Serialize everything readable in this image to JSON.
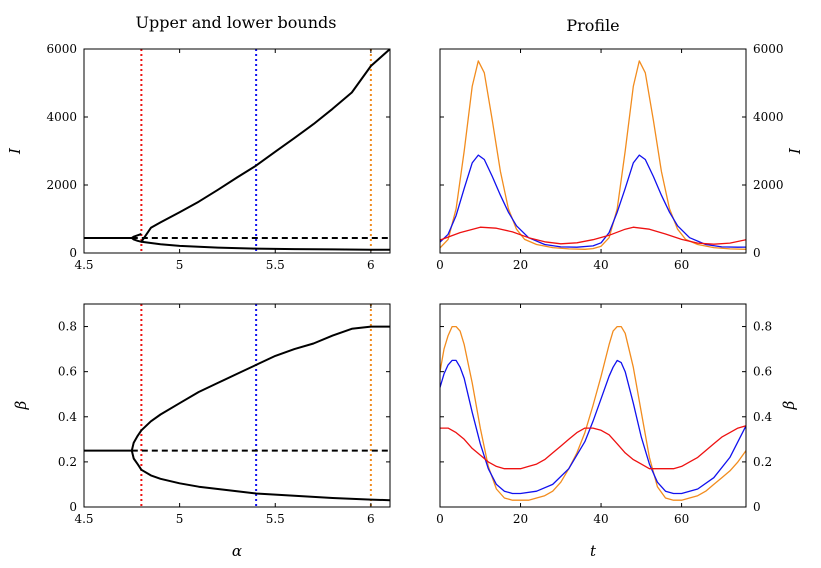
{
  "figure": {
    "left_title": "Upper and lower bounds",
    "right_title": "Profile"
  },
  "colors": {
    "red": "#ee1111",
    "blue": "#1111ee",
    "orange": "#f28c1e",
    "black": "#000000"
  },
  "chart_data": [
    {
      "id": "bounds-I",
      "type": "line",
      "title": "Upper and lower bounds",
      "xlabel": "",
      "ylabel": "I",
      "xlim": [
        4.5,
        6.1
      ],
      "ylim": [
        0,
        6000
      ],
      "xticks": [
        4.5,
        5,
        5.5,
        6
      ],
      "xtick_labels": [
        "4.5",
        "5",
        "5.5",
        "6"
      ],
      "yticks": [
        0,
        2000,
        4000,
        6000
      ],
      "ytick_labels": [
        "0",
        "2000",
        "4000",
        "6000"
      ],
      "yaxis_side": "left",
      "grid": false,
      "series": [
        {
          "style": "solid",
          "color": "#000000",
          "x": [
            4.5,
            4.6,
            4.7,
            4.75
          ],
          "y": [
            440,
            440,
            440,
            440
          ]
        },
        {
          "style": "solid",
          "color": "#000000",
          "x": [
            4.8,
            4.78,
            4.76,
            4.75,
            4.76,
            4.78,
            4.8,
            4.85,
            4.9,
            5.0,
            5.1,
            5.2,
            5.3,
            5.4,
            5.5,
            5.6,
            5.7,
            5.8,
            5.9,
            6.0,
            6.1
          ],
          "y": [
            560,
            520,
            480,
            440,
            400,
            360,
            330,
            740,
            900,
            1200,
            1510,
            1860,
            2220,
            2570,
            2980,
            3380,
            3790,
            4240,
            4720,
            5500,
            6000
          ]
        },
        {
          "style": "solid",
          "color": "#000000",
          "x": [
            4.8,
            4.9,
            5.0,
            5.2,
            5.4,
            5.6,
            5.8,
            6.0,
            6.1
          ],
          "y": [
            330,
            260,
            210,
            160,
            130,
            115,
            105,
            98,
            95
          ]
        },
        {
          "style": "dashed",
          "color": "#000000",
          "x": [
            4.75,
            6.1
          ],
          "y": [
            440,
            440
          ]
        }
      ],
      "vlines": [
        {
          "x": 4.8,
          "color": "#ee1111"
        },
        {
          "x": 5.4,
          "color": "#1111ee"
        },
        {
          "x": 6.0,
          "color": "#f28c1e"
        }
      ]
    },
    {
      "id": "profile-I",
      "type": "line",
      "title": "Profile",
      "xlabel": "",
      "ylabel": "I",
      "xlim": [
        0,
        76
      ],
      "ylim": [
        0,
        6000
      ],
      "xticks": [
        0,
        20,
        40,
        60
      ],
      "xtick_labels": [
        "0",
        "20",
        "40",
        "60"
      ],
      "yticks": [
        0,
        2000,
        4000,
        6000
      ],
      "ytick_labels": [
        "0",
        "2000",
        "4000",
        "6000"
      ],
      "yaxis_side": "right",
      "grid": false,
      "series": [
        {
          "color": "#f28c1e",
          "x": [
            0,
            2,
            4,
            6,
            8,
            9.5,
            11,
            13,
            15,
            17,
            19,
            21,
            24,
            28,
            32,
            36,
            38,
            40,
            42,
            44,
            46,
            48,
            49.5,
            51,
            53,
            55,
            57,
            59,
            61,
            64,
            68,
            72,
            76
          ],
          "y": [
            150,
            400,
            1300,
            3000,
            4900,
            5650,
            5300,
            3900,
            2400,
            1300,
            700,
            400,
            250,
            160,
            120,
            110,
            130,
            200,
            450,
            1300,
            3000,
            4900,
            5650,
            5300,
            3900,
            2400,
            1300,
            700,
            400,
            250,
            160,
            120,
            110
          ]
        },
        {
          "color": "#1111ee",
          "x": [
            0,
            2,
            4,
            6,
            8,
            9.5,
            11,
            13,
            15,
            17,
            19,
            22,
            26,
            30,
            34,
            38,
            40,
            42,
            44,
            46,
            48,
            49.5,
            51,
            53,
            55,
            57,
            59,
            62,
            66,
            70,
            74,
            76
          ],
          "y": [
            320,
            550,
            1100,
            1900,
            2650,
            2880,
            2750,
            2250,
            1700,
            1200,
            800,
            450,
            250,
            180,
            170,
            210,
            300,
            600,
            1200,
            1900,
            2650,
            2880,
            2750,
            2250,
            1700,
            1200,
            800,
            450,
            250,
            180,
            170,
            175
          ]
        },
        {
          "color": "#ee1111",
          "x": [
            0,
            5,
            10,
            14,
            18,
            22,
            26,
            30,
            34,
            38,
            42,
            46,
            48,
            52,
            56,
            60,
            64,
            68,
            72,
            76
          ],
          "y": [
            380,
            600,
            760,
            730,
            620,
            450,
            330,
            270,
            300,
            390,
            520,
            700,
            760,
            700,
            560,
            400,
            290,
            260,
            290,
            390
          ]
        }
      ],
      "vlines": []
    },
    {
      "id": "bounds-beta",
      "type": "line",
      "title": "",
      "xlabel": "α",
      "ylabel": "β",
      "xlim": [
        4.5,
        6.1
      ],
      "ylim": [
        0,
        0.9
      ],
      "xticks": [
        4.5,
        5,
        5.5,
        6
      ],
      "xtick_labels": [
        "4.5",
        "5",
        "5.5",
        "6"
      ],
      "yticks": [
        0,
        0.2,
        0.4,
        0.6,
        0.8
      ],
      "ytick_labels": [
        "0",
        "0.2",
        "0.4",
        "0.6",
        "0.8"
      ],
      "yaxis_side": "left",
      "grid": false,
      "series": [
        {
          "style": "solid",
          "color": "#000000",
          "x": [
            4.5,
            4.6,
            4.7,
            4.75
          ],
          "y": [
            0.25,
            0.25,
            0.25,
            0.25
          ]
        },
        {
          "style": "solid",
          "color": "#000000",
          "x": [
            4.75,
            4.76,
            4.78,
            4.8,
            4.85,
            4.9,
            5.0,
            5.1,
            5.2,
            5.3,
            5.4,
            5.5,
            5.6,
            5.7,
            5.8,
            5.9,
            6.0,
            6.1
          ],
          "y": [
            0.25,
            0.285,
            0.315,
            0.34,
            0.38,
            0.41,
            0.46,
            0.51,
            0.55,
            0.59,
            0.63,
            0.67,
            0.7,
            0.725,
            0.76,
            0.79,
            0.8,
            0.8
          ]
        },
        {
          "style": "solid",
          "color": "#000000",
          "x": [
            4.75,
            4.76,
            4.78,
            4.8,
            4.85,
            4.9,
            5.0,
            5.1,
            5.2,
            5.3,
            5.4,
            5.6,
            5.8,
            6.0,
            6.1
          ],
          "y": [
            0.25,
            0.215,
            0.19,
            0.165,
            0.14,
            0.125,
            0.105,
            0.09,
            0.08,
            0.07,
            0.06,
            0.05,
            0.04,
            0.033,
            0.03
          ]
        },
        {
          "style": "dashed",
          "color": "#000000",
          "x": [
            4.75,
            6.1
          ],
          "y": [
            0.25,
            0.25
          ]
        }
      ],
      "vlines": [
        {
          "x": 4.8,
          "color": "#ee1111"
        },
        {
          "x": 5.4,
          "color": "#1111ee"
        },
        {
          "x": 6.0,
          "color": "#f28c1e"
        }
      ]
    },
    {
      "id": "profile-beta",
      "type": "line",
      "title": "",
      "xlabel": "t",
      "ylabel": "β",
      "xlim": [
        0,
        76
      ],
      "ylim": [
        0,
        0.9
      ],
      "xticks": [
        0,
        20,
        40,
        60
      ],
      "xtick_labels": [
        "0",
        "20",
        "40",
        "60"
      ],
      "yticks": [
        0,
        0.2,
        0.4,
        0.6,
        0.8
      ],
      "ytick_labels": [
        "0",
        "0.2",
        "0.4",
        "0.6",
        "0.8"
      ],
      "yaxis_side": "right",
      "grid": false,
      "series": [
        {
          "color": "#f28c1e",
          "x": [
            0,
            1,
            2,
            3,
            4,
            5,
            6,
            8,
            10,
            12,
            14,
            16,
            18,
            20,
            22,
            24,
            26,
            28,
            30,
            32,
            34,
            36,
            38,
            40,
            41,
            42,
            43,
            44,
            45,
            46,
            48,
            50,
            52,
            54,
            56,
            58,
            60,
            62,
            64,
            66,
            68,
            70,
            72,
            74,
            76
          ],
          "y": [
            0.6,
            0.7,
            0.76,
            0.8,
            0.8,
            0.78,
            0.72,
            0.55,
            0.35,
            0.18,
            0.08,
            0.04,
            0.03,
            0.03,
            0.03,
            0.04,
            0.05,
            0.07,
            0.11,
            0.17,
            0.24,
            0.33,
            0.45,
            0.58,
            0.65,
            0.72,
            0.78,
            0.8,
            0.8,
            0.77,
            0.62,
            0.42,
            0.22,
            0.09,
            0.04,
            0.03,
            0.03,
            0.04,
            0.05,
            0.07,
            0.1,
            0.13,
            0.16,
            0.2,
            0.25
          ]
        },
        {
          "color": "#1111ee",
          "x": [
            0,
            1,
            2,
            3,
            4,
            5,
            6,
            8,
            10,
            12,
            14,
            16,
            18,
            20,
            24,
            28,
            32,
            36,
            38,
            40,
            42,
            43,
            44,
            45,
            46,
            48,
            50,
            52,
            54,
            56,
            58,
            60,
            64,
            68,
            72,
            76
          ],
          "y": [
            0.53,
            0.59,
            0.63,
            0.65,
            0.65,
            0.62,
            0.57,
            0.42,
            0.28,
            0.17,
            0.1,
            0.07,
            0.06,
            0.06,
            0.07,
            0.1,
            0.17,
            0.29,
            0.38,
            0.48,
            0.58,
            0.62,
            0.65,
            0.64,
            0.6,
            0.46,
            0.31,
            0.19,
            0.11,
            0.07,
            0.06,
            0.06,
            0.08,
            0.13,
            0.22,
            0.36
          ]
        },
        {
          "color": "#ee1111",
          "x": [
            0,
            2,
            4,
            6,
            8,
            10,
            12,
            14,
            16,
            18,
            20,
            22,
            24,
            26,
            28,
            30,
            32,
            34,
            36,
            38,
            40,
            42,
            44,
            46,
            48,
            50,
            52,
            54,
            56,
            58,
            60,
            62,
            64,
            66,
            68,
            70,
            72,
            74,
            76
          ],
          "y": [
            0.35,
            0.35,
            0.33,
            0.3,
            0.26,
            0.23,
            0.2,
            0.18,
            0.17,
            0.17,
            0.17,
            0.18,
            0.19,
            0.21,
            0.24,
            0.27,
            0.3,
            0.33,
            0.35,
            0.35,
            0.34,
            0.32,
            0.28,
            0.24,
            0.21,
            0.19,
            0.17,
            0.17,
            0.17,
            0.17,
            0.18,
            0.2,
            0.22,
            0.25,
            0.28,
            0.31,
            0.33,
            0.35,
            0.36
          ]
        }
      ],
      "vlines": []
    }
  ]
}
